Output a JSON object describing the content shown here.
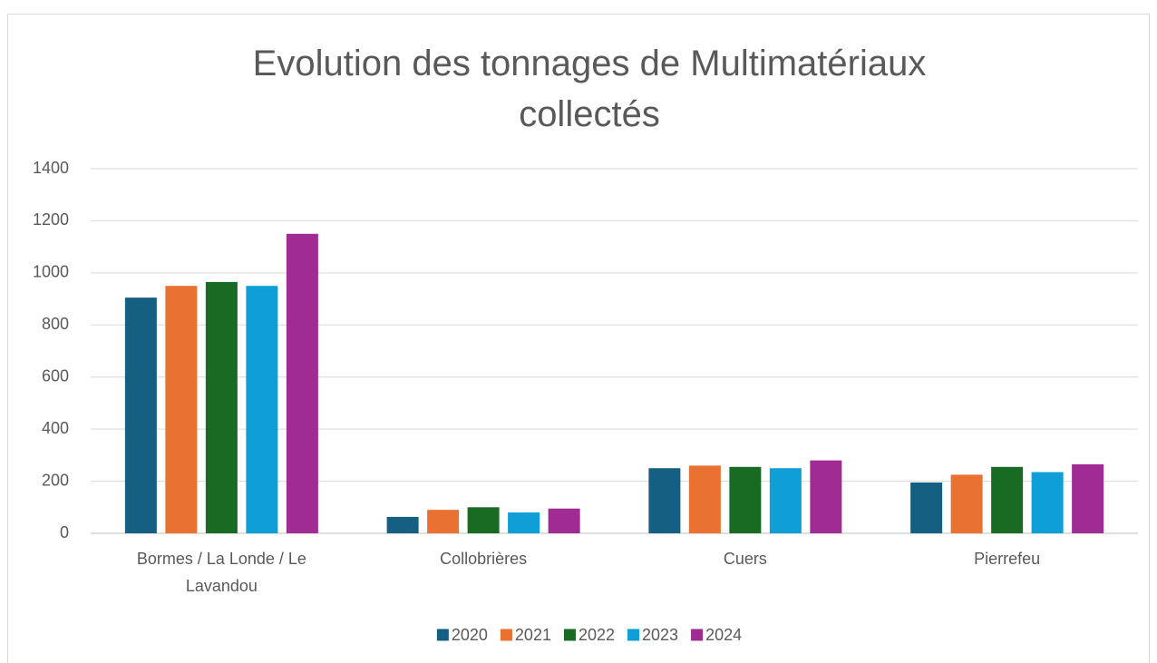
{
  "chart_data": {
    "type": "bar",
    "title": "Evolution des tonnages de Multimatériaux collectés",
    "categories": [
      "Bormes / La Londe / Le Lavandou",
      "Collobrières",
      "Cuers",
      "Pierrefeu"
    ],
    "series": [
      {
        "name": "2020",
        "color": "#156082",
        "values": [
          905,
          63,
          250,
          195
        ]
      },
      {
        "name": "2021",
        "color": "#e97132",
        "values": [
          950,
          90,
          260,
          225
        ]
      },
      {
        "name": "2022",
        "color": "#196b24",
        "values": [
          965,
          100,
          255,
          255
        ]
      },
      {
        "name": "2023",
        "color": "#0f9ed5",
        "values": [
          950,
          80,
          250,
          235
        ]
      },
      {
        "name": "2024",
        "color": "#a02b93",
        "values": [
          1150,
          95,
          280,
          265
        ]
      }
    ],
    "ylim": [
      0,
      1400
    ],
    "yticks": [
      0,
      200,
      400,
      600,
      800,
      1000,
      1200,
      1400
    ],
    "grid": true,
    "legend": "bottom"
  }
}
